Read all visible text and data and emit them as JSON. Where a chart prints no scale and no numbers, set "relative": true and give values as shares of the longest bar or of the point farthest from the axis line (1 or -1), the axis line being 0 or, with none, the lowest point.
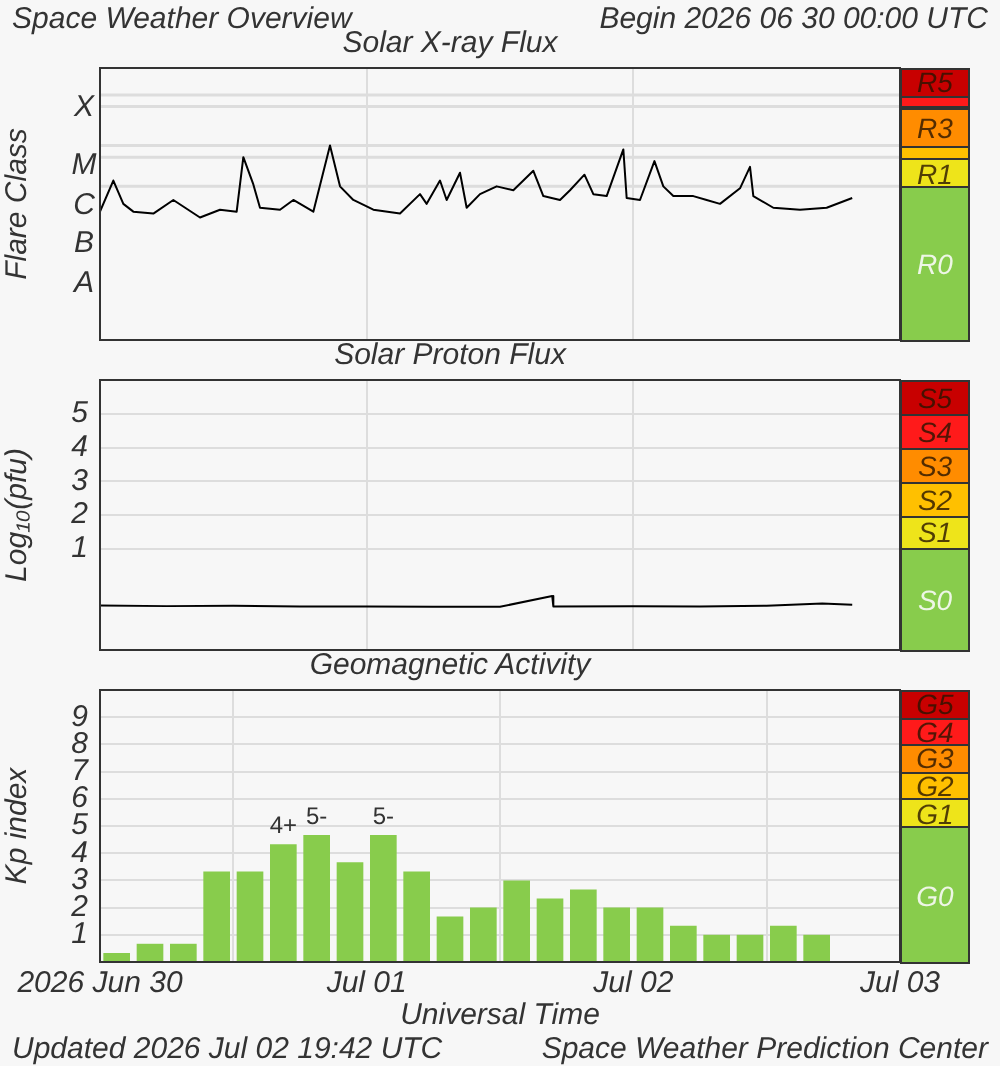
{
  "chart_data": [
    {
      "type": "line",
      "title": "Solar X-ray Flux",
      "ylabel": "Flare Class",
      "relative": true,
      "annotations": [
        "Space Weather Overview",
        "Begin 2026 06 30 00:00 UTC",
        "X",
        "M",
        "C",
        "B",
        "A"
      ],
      "tick_labels": false,
      "grid": "x",
      "xlim": [
        "2026-06-30",
        "2026-07-03"
      ],
      "xticks": [
        {
          "value": "2026-07-01",
          "label": null
        },
        {
          "value": "2026-07-02",
          "label": null
        }
      ],
      "x": [
        "2026-06-30T00:00",
        "2026-06-30T01:12",
        "2026-06-30T02:06",
        "2026-06-30T03:00",
        "2026-06-30T04:48",
        "2026-06-30T06:36",
        "2026-06-30T09:00",
        "2026-06-30T10:48",
        "2026-06-30T12:18",
        "2026-06-30T12:54",
        "2026-06-30T13:48",
        "2026-06-30T14:24",
        "2026-06-30T16:12",
        "2026-06-30T17:24",
        "2026-06-30T19:12",
        "2026-06-30T20:42",
        "2026-06-30T21:36",
        "2026-06-30T22:48",
        "2026-07-01T00:36",
        "2026-07-01T03:00",
        "2026-07-01T04:48",
        "2026-07-01T05:24",
        "2026-07-01T06:36",
        "2026-07-01T07:12",
        "2026-07-01T08:24",
        "2026-07-01T09:00",
        "2026-07-01T10:12",
        "2026-07-01T11:42",
        "2026-07-01T13:12",
        "2026-07-01T15:00",
        "2026-07-01T15:54",
        "2026-07-01T17:24",
        "2026-07-01T18:18",
        "2026-07-01T19:36",
        "2026-07-01T20:24",
        "2026-07-01T21:36",
        "2026-07-01T23:06",
        "2026-07-01T23:24",
        "2026-07-02T00:36",
        "2026-07-02T01:54",
        "2026-07-02T02:42",
        "2026-07-02T03:36",
        "2026-07-02T05:24",
        "2026-07-02T06:36",
        "2026-07-02T07:48",
        "2026-07-02T09:36",
        "2026-07-02T10:30",
        "2026-07-02T10:48",
        "2026-07-02T12:36",
        "2026-07-02T15:00",
        "2026-07-02T17:24",
        "2026-07-02T19:42"
      ],
      "values": [
        0.66,
        0.82,
        0.7,
        0.66,
        0.65,
        0.72,
        0.63,
        0.67,
        0.66,
        0.94,
        0.8,
        0.68,
        0.67,
        0.72,
        0.66,
        1,
        0.79,
        0.72,
        0.67,
        0.65,
        0.75,
        0.7,
        0.82,
        0.72,
        0.86,
        0.68,
        0.75,
        0.79,
        0.77,
        0.87,
        0.74,
        0.72,
        0.77,
        0.85,
        0.75,
        0.74,
        0.98,
        0.73,
        0.72,
        0.92,
        0.79,
        0.74,
        0.74,
        0.72,
        0.7,
        0.78,
        0.89,
        0.74,
        0.68,
        0.67,
        0.68,
        0.73
      ],
      "color": "#000000",
      "ref_lines": [
        {
          "axis": "y",
          "value": 1.26,
          "color": "#dddddd"
        },
        {
          "axis": "y",
          "value": 1.2,
          "color": "#dddddd"
        },
        {
          "axis": "y",
          "value": 1.0,
          "color": "#dddddd"
        },
        {
          "axis": "y",
          "value": 0.94,
          "color": "#dddddd"
        },
        {
          "axis": "y",
          "value": 0.79,
          "color": "#dddddd"
        }
      ]
    },
    {
      "type": "other",
      "annotations": [
        "R5",
        "R3",
        "R1",
        "R0"
      ]
    },
    {
      "type": "line",
      "title": "Solar Proton Flux",
      "ylabel": "Log₁₀(pfu)",
      "tick_labels": "y",
      "grid": true,
      "xlim": [
        "2026-06-30",
        "2026-07-03"
      ],
      "xticks": [
        {
          "value": "2026-07-01",
          "label": null
        },
        {
          "value": "2026-07-02",
          "label": null
        }
      ],
      "ylim": [
        -2,
        6
      ],
      "yticks": [
        1,
        2,
        3,
        4,
        5
      ],
      "x": [
        "2026-06-30T00:00",
        "2026-06-30T06:00",
        "2026-06-30T12:00",
        "2026-06-30T18:00",
        "2026-07-01T00:00",
        "2026-07-01T06:00",
        "2026-07-01T12:00",
        "2026-07-01T16:42",
        "2026-07-01T16:48",
        "2026-07-02T00:00",
        "2026-07-02T06:00",
        "2026-07-02T12:00",
        "2026-07-02T17:00",
        "2026-07-02T19:42"
      ],
      "values": [
        -0.68,
        -0.7,
        -0.69,
        -0.71,
        -0.71,
        -0.72,
        -0.72,
        -0.4,
        -0.71,
        -0.7,
        -0.71,
        -0.69,
        -0.62,
        -0.66
      ],
      "color": "#000000"
    },
    {
      "type": "other",
      "annotations": [
        "S5",
        "S4",
        "S3",
        "S2",
        "S1",
        "S0"
      ]
    },
    {
      "type": "bar",
      "title": "Geomagnetic Activity",
      "xlabel": "Universal Time",
      "ylabel": "Kp index",
      "annotations": [
        "Updated 2026 Jul 02 19:42 UTC",
        "Space Weather Prediction Center"
      ],
      "grid": true,
      "xlim": [
        "2026-06-30",
        "2026-07-03"
      ],
      "xticks": [
        {
          "value": "2026-06-30",
          "label": "2026 Jun 30"
        },
        {
          "value": "2026-07-01",
          "label": "Jul 01"
        },
        {
          "value": "2026-07-02",
          "label": "Jul 02"
        },
        {
          "value": "2026-07-03",
          "label": "Jul 03"
        }
      ],
      "ylim": [
        0,
        10
      ],
      "yticks": [
        1,
        2,
        3,
        4,
        5,
        6,
        7,
        8,
        9
      ],
      "x": [
        "2026-06-30T01:30",
        "2026-06-30T04:30",
        "2026-06-30T07:30",
        "2026-06-30T10:30",
        "2026-06-30T13:30",
        "2026-06-30T16:30",
        "2026-06-30T19:30",
        "2026-06-30T22:30",
        "2026-07-01T01:30",
        "2026-07-01T04:30",
        "2026-07-01T07:30",
        "2026-07-01T10:30",
        "2026-07-01T13:30",
        "2026-07-01T16:30",
        "2026-07-01T19:30",
        "2026-07-01T22:30",
        "2026-07-02T01:30",
        "2026-07-02T04:30",
        "2026-07-02T07:30",
        "2026-07-02T10:30",
        "2026-07-02T13:30",
        "2026-07-02T16:30"
      ],
      "values": [
        0.33,
        0.67,
        0.67,
        3.33,
        3.33,
        4.33,
        4.67,
        3.67,
        4.67,
        3.33,
        1.67,
        2,
        3,
        2.33,
        2.67,
        2,
        2,
        1.33,
        1,
        1,
        1.33,
        1
      ],
      "value_labels": [
        null,
        null,
        null,
        null,
        null,
        "4+",
        "5-",
        null,
        "5-",
        null,
        null,
        null,
        null,
        null,
        null,
        null,
        null,
        null,
        null,
        null,
        null,
        null
      ],
      "color": "#88cc4c"
    },
    {
      "type": "other",
      "annotations": [
        "G5",
        "G4",
        "G3",
        "G2",
        "G1",
        "G0"
      ]
    }
  ]
}
